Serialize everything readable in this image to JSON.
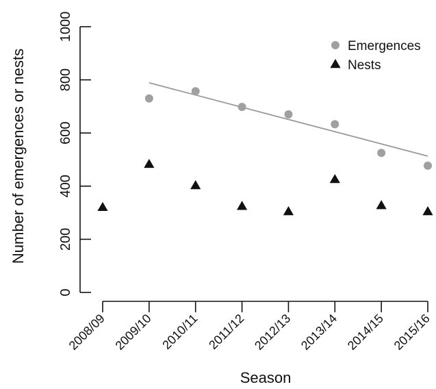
{
  "chart_data": {
    "type": "scatter",
    "xlabel": "Season",
    "ylabel": "Number of emergences or nests",
    "categories": [
      "2008/09",
      "2009/10",
      "2010/11",
      "2011/12",
      "2012/13",
      "2013/14",
      "2014/15",
      "2015/16"
    ],
    "ylim": [
      0,
      1000
    ],
    "yticks": [
      "0",
      "200",
      "400",
      "600",
      "800",
      "1000"
    ],
    "grid": false,
    "legend_position": "top-right",
    "series": [
      {
        "name": "Emergences",
        "marker": "circle",
        "color": "#a0a0a0",
        "values": [
          null,
          730,
          757,
          698,
          670,
          633,
          525,
          477
        ]
      },
      {
        "name": "Nests",
        "marker": "triangle",
        "color": "#111111",
        "values": [
          320,
          482,
          402,
          324,
          304,
          425,
          327,
          304
        ]
      }
    ],
    "trend_line": {
      "series": "Emergences",
      "color": "#999999",
      "start": {
        "x": "2009/10",
        "y": 789
      },
      "end": {
        "x": "2015/16",
        "y": 513
      }
    }
  }
}
